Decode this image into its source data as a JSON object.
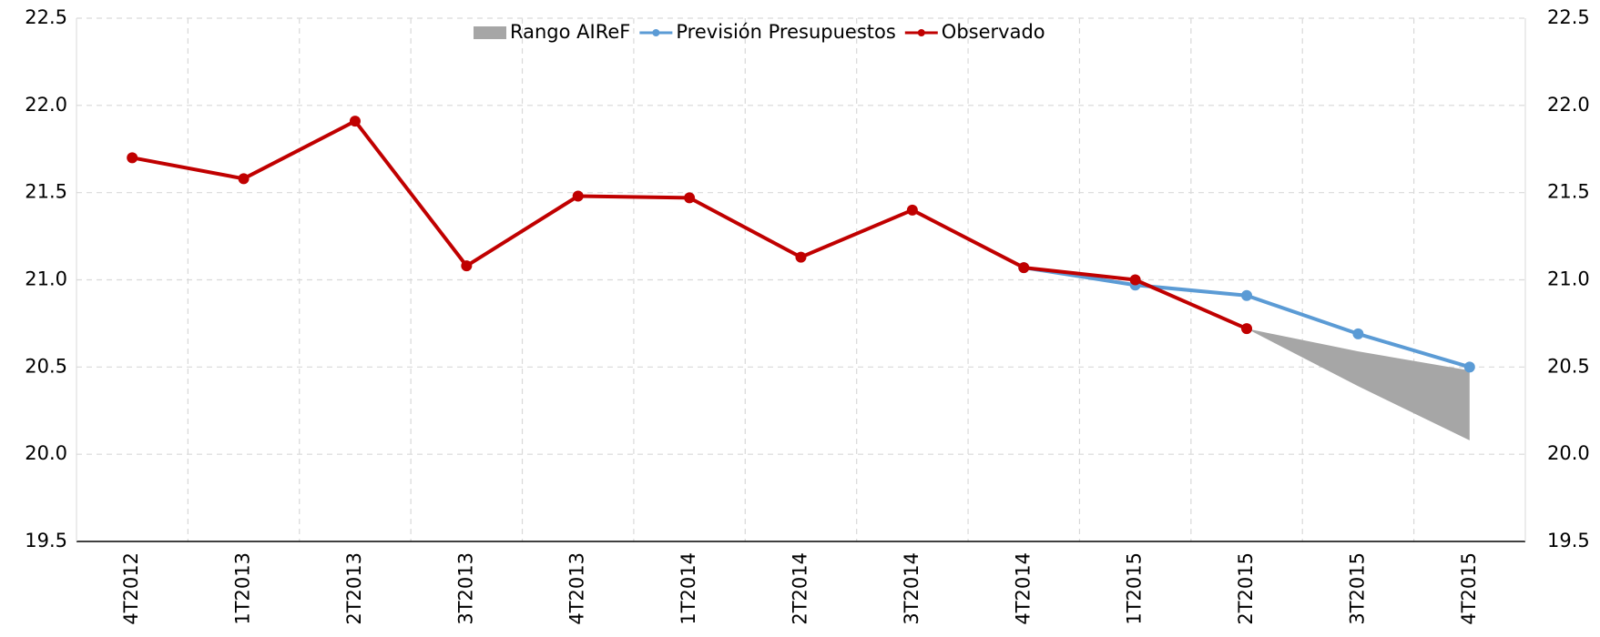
{
  "chart_data": {
    "type": "line",
    "categories": [
      "4T2012",
      "1T2013",
      "2T2013",
      "3T2013",
      "4T2013",
      "1T2014",
      "2T2014",
      "3T2014",
      "4T2014",
      "1T2015",
      "2T2015",
      "3T2015",
      "4T2015"
    ],
    "series": [
      {
        "name": "Rango AIReF",
        "color": "#a6a6a6",
        "type": "range",
        "low": [
          null,
          null,
          null,
          null,
          null,
          null,
          null,
          null,
          null,
          null,
          20.72,
          20.39,
          20.08
        ],
        "high": [
          null,
          null,
          null,
          null,
          null,
          null,
          null,
          null,
          null,
          null,
          20.72,
          20.59,
          20.48
        ]
      },
      {
        "name": "Previsión Presupuestos",
        "color": "#5b9bd5",
        "values": [
          null,
          null,
          null,
          null,
          null,
          null,
          null,
          null,
          21.07,
          20.97,
          20.91,
          20.69,
          20.5
        ]
      },
      {
        "name": "Observado",
        "color": "#c00000",
        "values": [
          21.7,
          21.58,
          21.91,
          21.08,
          21.48,
          21.47,
          21.13,
          21.4,
          21.07,
          21.0,
          20.72,
          null,
          null
        ]
      }
    ],
    "ylim": [
      19.5,
      22.5
    ],
    "yticks": [
      19.5,
      {
        "value": 20,
        "label": "20.0"
      },
      20.5,
      {
        "value": 21,
        "label": "21.0"
      },
      21.5,
      {
        "value": 22,
        "label": "22.0"
      },
      22.5
    ],
    "grid": true,
    "legend": "top"
  }
}
